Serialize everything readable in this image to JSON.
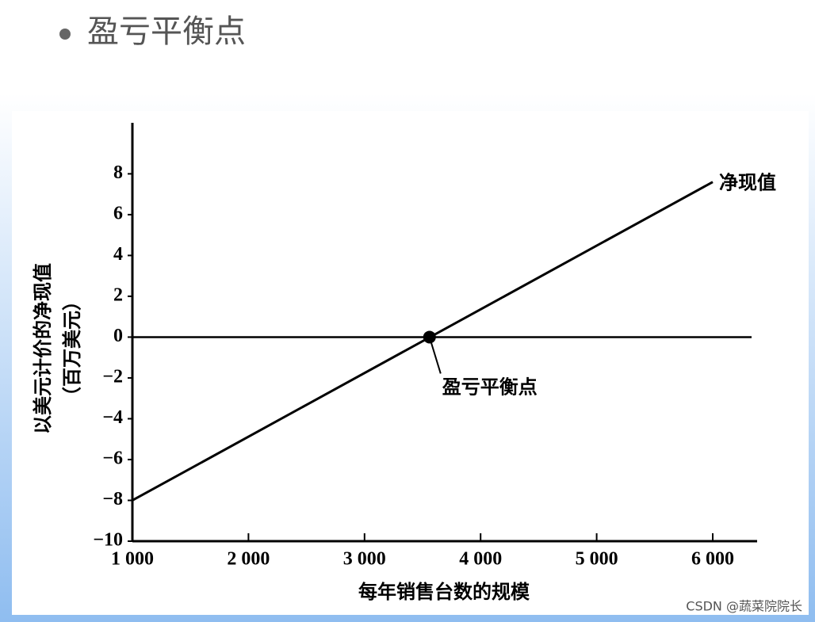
{
  "slide_title": "盈亏平衡点",
  "watermark": "CSDN @蔬菜院院长",
  "chart_data": {
    "type": "line",
    "y_label": "以美元计价的净现值",
    "y_label_unit": "（百万美元）",
    "x_label": "每年销售台数的规模",
    "x": [
      1000,
      6000
    ],
    "series": [
      {
        "name": "净现值",
        "color": "#000000",
        "values": [
          -8,
          7.6
        ]
      }
    ],
    "breakeven": {
      "label": "盈亏平衡点",
      "x": 3560,
      "y": 0
    },
    "reference_line": 0,
    "xlim": [
      1000,
      6380
    ],
    "ylim": [
      -10,
      10.5
    ],
    "xticks": [
      {
        "value": 1000,
        "label": "1 000"
      },
      {
        "value": 2000,
        "label": "2 000"
      },
      {
        "value": 3000,
        "label": "3 000"
      },
      {
        "value": 4000,
        "label": "4 000"
      },
      {
        "value": 5000,
        "label": "5 000"
      },
      {
        "value": 6000,
        "label": "6 000"
      }
    ],
    "yticks": [
      {
        "value": -10,
        "label": "−10"
      },
      {
        "value": -8,
        "label": "−8"
      },
      {
        "value": -6,
        "label": "−6"
      },
      {
        "value": -4,
        "label": "−4"
      },
      {
        "value": -2,
        "label": "−2"
      },
      0,
      2,
      4,
      6,
      8
    ]
  }
}
